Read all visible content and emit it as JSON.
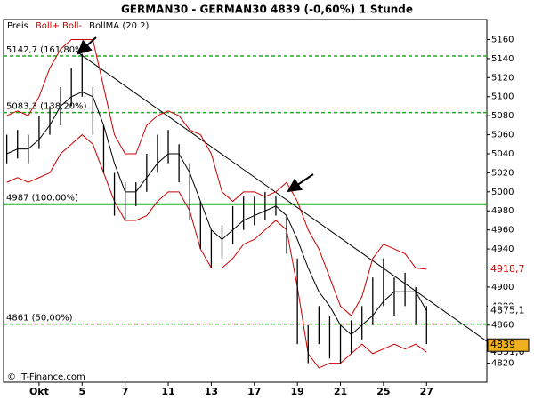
{
  "chart_data": {
    "type": "ohlc",
    "title": "GERMAN30 - GERMAN30     4839 (-0,60%)     1 Stunde",
    "legend": [
      "Preis",
      "Boll+ Boll-",
      "BollMA (20 2)"
    ],
    "legend_colors": [
      "#000000",
      "#cc0000",
      "#000000"
    ],
    "copyright": "© IT-Finance.com",
    "x": [
      -1.5,
      -1,
      -0.5,
      0,
      0.5,
      1,
      1.5,
      2,
      2.5,
      3,
      3.5,
      4,
      4.5,
      5,
      5.5,
      6,
      6.5,
      7,
      7.5,
      8,
      8.5,
      9,
      9.5,
      10,
      10.5,
      11,
      11.5,
      12,
      12.5,
      13,
      13.5,
      14,
      14.5,
      15,
      15.5,
      16,
      16.5,
      17,
      17.5,
      18
    ],
    "high": [
      5060,
      5065,
      5060,
      5080,
      5090,
      5110,
      5130,
      5145,
      5110,
      5070,
      5020,
      5010,
      5010,
      5040,
      5060,
      5065,
      5050,
      5030,
      4990,
      4960,
      4965,
      4985,
      4995,
      4995,
      5000,
      4995,
      4975,
      4930,
      4860,
      4880,
      4870,
      4860,
      4865,
      4880,
      4910,
      4930,
      4910,
      4915,
      4900,
      4880
    ],
    "low": [
      5030,
      5035,
      5030,
      5045,
      5060,
      5070,
      5090,
      5100,
      5060,
      5020,
      4975,
      4970,
      4985,
      5000,
      5020,
      5030,
      5010,
      4970,
      4940,
      4920,
      4930,
      4945,
      4960,
      4965,
      4970,
      4975,
      4935,
      4840,
      4820,
      4840,
      4825,
      4820,
      4830,
      4845,
      4860,
      4880,
      4870,
      4880,
      4860,
      4840
    ],
    "bar_color": "#000000",
    "series": [
      {
        "name": "Boll+",
        "color": "#cc0000",
        "values": [
          5080,
          5085,
          5080,
          5100,
          5130,
          5150,
          5160,
          5160,
          5160,
          5110,
          5060,
          5040,
          5040,
          5070,
          5080,
          5085,
          5080,
          5065,
          5060,
          5040,
          5000,
          4990,
          5000,
          5000,
          4995,
          5000,
          5010,
          4990,
          4960,
          4940,
          4910,
          4880,
          4870,
          4890,
          4930,
          4945,
          4940,
          4935,
          4920,
          4918.7
        ]
      },
      {
        "name": "BollMA",
        "color": "#000000",
        "values": [
          5040,
          5045,
          5045,
          5055,
          5070,
          5090,
          5100,
          5105,
          5100,
          5070,
          5030,
          5000,
          5000,
          5015,
          5030,
          5040,
          5040,
          5020,
          4990,
          4960,
          4950,
          4960,
          4970,
          4975,
          4980,
          4985,
          4975,
          4950,
          4920,
          4895,
          4880,
          4860,
          4850,
          4860,
          4870,
          4885,
          4895,
          4895,
          4895,
          4875.1
        ]
      },
      {
        "name": "Boll-",
        "color": "#cc0000",
        "values": [
          5010,
          5015,
          5010,
          5015,
          5020,
          5040,
          5050,
          5060,
          5050,
          5020,
          4990,
          4970,
          4970,
          4975,
          4990,
          5000,
          5000,
          4980,
          4940,
          4920,
          4920,
          4930,
          4945,
          4950,
          4960,
          4970,
          4960,
          4900,
          4830,
          4815,
          4820,
          4820,
          4830,
          4840,
          4830,
          4835,
          4840,
          4835,
          4840,
          4831.6
        ]
      }
    ],
    "levels": [
      {
        "value": 5142.7,
        "label": "5142,7 (161,80%)",
        "style": "dashed"
      },
      {
        "value": 5083.3,
        "label": "5083,3 (138,20%)",
        "style": "dashed"
      },
      {
        "value": 4987,
        "label": "4987 (100,00%)",
        "style": "solid"
      },
      {
        "value": 4861,
        "label": "4861 (50,00%)",
        "style": "dashed"
      }
    ],
    "level_color": "#22aa22",
    "trendline": {
      "x": [
        1.7,
        20.8
      ],
      "y": [
        5148,
        4843
      ],
      "color": "#000000"
    },
    "price_markers": [
      {
        "value": 4918.7,
        "label": "4918,7",
        "color": "#cc0000",
        "fill": "#ffffff"
      },
      {
        "value": 4875.1,
        "label": "4875,1",
        "color": "#000000",
        "fill": "#ffffff"
      },
      {
        "value": 4831.6,
        "label": "4831,6",
        "color": "#000000",
        "fill": "#ffffff"
      },
      {
        "value": 4839,
        "label": "4839",
        "color": "#000000",
        "fill": "#f0b020"
      }
    ],
    "xlim": [
      -1.65,
      20.8
    ],
    "ylim": [
      4800,
      5181
    ],
    "xticks": [
      {
        "value": 0,
        "label": "Okt"
      },
      {
        "value": 2,
        "label": "5"
      },
      {
        "value": 4,
        "label": "7"
      },
      {
        "value": 6,
        "label": "11"
      },
      {
        "value": 8,
        "label": "13"
      },
      {
        "value": 10,
        "label": "17"
      },
      {
        "value": 12,
        "label": "19"
      },
      {
        "value": 14,
        "label": "21"
      },
      {
        "value": 16,
        "label": "25"
      },
      {
        "value": 18,
        "label": "27"
      }
    ],
    "yticks": [
      4820,
      4840,
      4860,
      4880,
      4900,
      4920,
      4940,
      4960,
      4980,
      5000,
      5020,
      5040,
      5060,
      5080,
      5100,
      5120,
      5140,
      5160
    ]
  }
}
